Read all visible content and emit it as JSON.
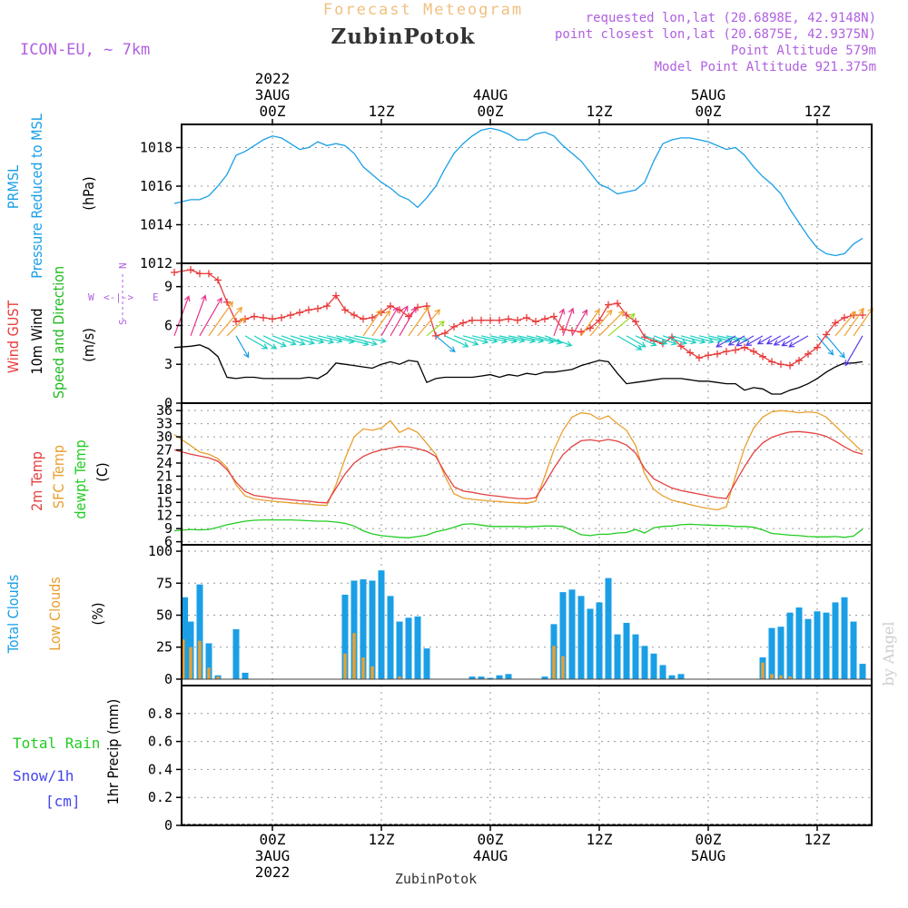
{
  "header": {
    "super_title": "Forecast Meteogram",
    "location": "ZubinPotok",
    "model": "ICON-EU, ~ 7km",
    "requested": "requested lon,lat (20.6898E, 42.9148N)",
    "closest": "point closest lon,lat (20.6875E, 42.9375N)",
    "point_alt": "Point Altitude 579m",
    "model_alt": "Model Point Altitude 921.375m",
    "footer": "ZubinPotok",
    "credit": "by Angel"
  },
  "colors": {
    "pressure": "#1a9fe6",
    "gust": "#e83a3a",
    "wind": "#000000",
    "dir": "#22bb22",
    "t2m": "#e34040",
    "sfc": "#e8a030",
    "dew": "#22cc22",
    "tcc": "#1a9fe6",
    "lcc": "#e8a030",
    "rain": "#22cc22",
    "snow": "#4444ee",
    "violet": "#b060e0",
    "orange_title": "#f0c080"
  },
  "time_axis": {
    "top": [
      {
        "h": 0,
        "lines": [
          "2022",
          "3AUG",
          "00Z"
        ]
      },
      {
        "h": 12,
        "lines": [
          "12Z"
        ]
      },
      {
        "h": 24,
        "lines": [
          "4AUG",
          "00Z"
        ]
      },
      {
        "h": 36,
        "lines": [
          "12Z"
        ]
      },
      {
        "h": 48,
        "lines": [
          "5AUG",
          "00Z"
        ]
      },
      {
        "h": 60,
        "lines": [
          "12Z"
        ]
      }
    ],
    "bottom": [
      {
        "h": 0,
        "lines": [
          "00Z",
          "3AUG",
          "2022"
        ]
      },
      {
        "h": 12,
        "lines": [
          "12Z"
        ]
      },
      {
        "h": 24,
        "lines": [
          "00Z",
          "4AUG"
        ]
      },
      {
        "h": 36,
        "lines": [
          "12Z"
        ]
      },
      {
        "h": 48,
        "lines": [
          "00Z",
          "5AUG"
        ]
      },
      {
        "h": 60,
        "lines": [
          "12Z"
        ]
      }
    ]
  },
  "panels": {
    "pressure": {
      "labels": [
        {
          "text": "PRMSL",
          "color": "pressure"
        },
        {
          "text": "Pressure Reduced to MSL",
          "color": "pressure"
        },
        {
          "text": "(hPa)",
          "color": "wind"
        }
      ],
      "ticks": [
        "1012",
        "1014",
        "1016",
        "1018"
      ]
    },
    "wind": {
      "labels": [
        {
          "text": "Wind GUST",
          "color": "gust"
        },
        {
          "text": "10m Wind",
          "color": "wind"
        },
        {
          "text": "Speed and Direction",
          "color": "dir"
        },
        {
          "text": "(m/s)",
          "color": "wind"
        }
      ],
      "ticks": [
        "0",
        "3",
        "6",
        "9"
      ],
      "compass_w": "W",
      "compass_e": "E",
      "compass_n": "N",
      "compass_s": "S",
      "compass_arrows": "<-|->"
    },
    "temp": {
      "labels": [
        {
          "text": "2m Temp",
          "color": "t2m"
        },
        {
          "text": "SFC Temp",
          "color": "sfc"
        },
        {
          "text": "dewpt Temp",
          "color": "dew"
        },
        {
          "text": "(C)",
          "color": "wind"
        }
      ],
      "ticks": [
        "6",
        "9",
        "12",
        "15",
        "18",
        "21",
        "24",
        "27",
        "30",
        "33",
        "36"
      ]
    },
    "clouds": {
      "labels": [
        {
          "text": "Total Clouds",
          "color": "tcc"
        },
        {
          "text": "Low Clouds",
          "color": "lcc"
        },
        {
          "text": "(%)",
          "color": "wind"
        }
      ],
      "ticks": [
        "0",
        "25",
        "50",
        "75",
        "100"
      ]
    },
    "precip": {
      "label_rain": "Total  Rain",
      "label_snow": "Snow/1h",
      "label_cm": "[cm]",
      "axis_label": "1hr Precip (mm)",
      "ticks": [
        "0",
        "0.2",
        "0.4",
        "0.6",
        "0.8"
      ]
    }
  },
  "chart_data": {
    "type": "line",
    "x_unit": "hours from 2022-08-03 00Z",
    "xlim": [
      -10,
      66
    ],
    "pressure": {
      "name": "PRMSL",
      "ylim": [
        1012,
        1019.2
      ],
      "x": [
        -10.8,
        -9,
        -8,
        -7,
        -6,
        -5,
        -4,
        -3,
        -2,
        -1,
        0,
        1,
        2,
        3,
        4,
        5,
        6,
        7,
        8,
        9,
        10,
        11,
        12,
        13,
        14,
        15,
        16,
        17,
        18,
        19,
        20,
        21,
        22,
        23,
        24,
        25,
        26,
        27,
        28,
        29,
        30,
        31,
        32,
        33,
        34,
        35,
        36,
        37,
        38,
        39,
        40,
        41,
        42,
        43,
        44,
        45,
        46,
        47,
        48,
        49,
        50,
        51,
        52,
        53,
        54,
        55,
        56,
        57,
        58,
        59,
        60,
        61,
        62,
        63,
        64,
        65
      ],
      "values": [
        1015.1,
        1015.3,
        1015.3,
        1015.5,
        1016.0,
        1016.6,
        1017.6,
        1017.8,
        1018.1,
        1018.4,
        1018.6,
        1018.5,
        1018.2,
        1017.9,
        1018.0,
        1018.3,
        1018.1,
        1018.2,
        1018.1,
        1017.7,
        1017.0,
        1016.6,
        1016.2,
        1015.9,
        1015.5,
        1015.3,
        1014.9,
        1015.4,
        1016.0,
        1016.9,
        1017.7,
        1018.2,
        1018.6,
        1018.9,
        1019.0,
        1018.9,
        1018.7,
        1018.4,
        1018.4,
        1018.7,
        1018.8,
        1018.6,
        1018.1,
        1017.7,
        1017.3,
        1016.7,
        1016.1,
        1015.9,
        1015.6,
        1015.7,
        1015.8,
        1016.2,
        1017.3,
        1018.2,
        1018.4,
        1018.5,
        1018.5,
        1018.4,
        1018.3,
        1018.1,
        1017.9,
        1018.0,
        1017.6,
        1017.0,
        1016.5,
        1016.1,
        1015.6,
        1014.8,
        1014.1,
        1013.4,
        1012.8,
        1012.5,
        1012.4,
        1012.5,
        1013.0,
        1013.3
      ]
    },
    "wind": {
      "ylim": [
        0,
        10.8
      ],
      "x": [
        -10.8,
        -9,
        -8,
        -7,
        -6,
        -5,
        -4,
        -3,
        -2,
        -1,
        0,
        1,
        2,
        3,
        4,
        5,
        6,
        7,
        8,
        9,
        10,
        11,
        12,
        13,
        14,
        15,
        16,
        17,
        18,
        19,
        20,
        21,
        22,
        23,
        24,
        25,
        26,
        27,
        28,
        29,
        30,
        31,
        32,
        33,
        34,
        35,
        36,
        37,
        38,
        39,
        40,
        41,
        42,
        43,
        44,
        45,
        46,
        47,
        48,
        49,
        50,
        51,
        52,
        53,
        54,
        55,
        56,
        57,
        58,
        59,
        60,
        61,
        62,
        63,
        64,
        65
      ],
      "gust": {
        "name": "Wind GUST",
        "values": [
          10.1,
          10.3,
          10.0,
          10.0,
          9.5,
          7.8,
          6.3,
          6.5,
          6.7,
          6.6,
          6.5,
          6.6,
          6.8,
          7.0,
          7.2,
          7.3,
          7.5,
          8.3,
          7.2,
          6.8,
          6.5,
          6.6,
          7.0,
          7.5,
          7.2,
          6.7,
          7.4,
          7.5,
          5.2,
          5.4,
          5.9,
          6.2,
          6.4,
          6.4,
          6.4,
          6.4,
          6.5,
          6.4,
          6.6,
          6.3,
          6.5,
          6.7,
          5.7,
          5.6,
          5.5,
          5.8,
          6.4,
          7.6,
          7.7,
          6.8,
          6.3,
          5.1,
          4.8,
          4.6,
          5.1,
          4.4,
          3.9,
          3.5,
          3.7,
          3.8,
          4.0,
          4.1,
          4.3,
          4.0,
          3.6,
          3.2,
          3.0,
          2.9,
          3.3,
          3.8,
          4.3,
          5.3,
          6.2,
          6.6,
          6.8,
          6.8
        ]
      },
      "speed": {
        "name": "10m Wind",
        "values": [
          4.3,
          4.4,
          4.5,
          4.2,
          3.6,
          2.0,
          1.9,
          2.0,
          2.0,
          1.9,
          1.9,
          1.9,
          1.9,
          1.9,
          2.0,
          1.9,
          2.3,
          3.1,
          3.0,
          2.9,
          2.8,
          2.7,
          3.0,
          3.2,
          3.0,
          3.3,
          3.2,
          1.6,
          1.9,
          2.0,
          2.0,
          2.0,
          2.0,
          2.1,
          2.2,
          2.0,
          2.2,
          2.1,
          2.3,
          2.2,
          2.4,
          2.4,
          2.5,
          2.6,
          2.9,
          3.1,
          3.3,
          3.2,
          2.3,
          1.5,
          1.6,
          1.7,
          1.8,
          1.9,
          1.9,
          1.9,
          1.8,
          1.7,
          1.7,
          1.6,
          1.5,
          1.5,
          1.0,
          1.2,
          1.1,
          0.7,
          0.7,
          1.0,
          1.2,
          1.5,
          1.9,
          2.4,
          2.8,
          3.1,
          3.1,
          3.2
        ]
      },
      "direction_deg": [
        200,
        200,
        210,
        215,
        220,
        225,
        330,
        300,
        300,
        295,
        290,
        290,
        288,
        285,
        285,
        283,
        283,
        285,
        285,
        280,
        215,
        215,
        210,
        210,
        210,
        215,
        220,
        230,
        310,
        295,
        290,
        285,
        283,
        283,
        282,
        282,
        282,
        282,
        283,
        285,
        290,
        200,
        200,
        210,
        215,
        220,
        225,
        230,
        300,
        300,
        295,
        290,
        290,
        288,
        286,
        285,
        285,
        283,
        283,
        282,
        282,
        60,
        60,
        60,
        60,
        60,
        60,
        60,
        60,
        60,
        320,
        320,
        220,
        215,
        215,
        30
      ]
    },
    "temperature": {
      "ylim": [
        5.3,
        37.7
      ],
      "x": [
        -10.8,
        -9,
        -8,
        -7,
        -6,
        -5,
        -4,
        -3,
        -2,
        -1,
        0,
        1,
        2,
        3,
        4,
        5,
        6,
        7,
        8,
        9,
        10,
        11,
        12,
        13,
        14,
        15,
        16,
        17,
        18,
        19,
        20,
        21,
        22,
        23,
        24,
        25,
        26,
        27,
        28,
        29,
        30,
        31,
        32,
        33,
        34,
        35,
        36,
        37,
        38,
        39,
        40,
        41,
        42,
        43,
        44,
        45,
        46,
        47,
        48,
        49,
        50,
        51,
        52,
        53,
        54,
        55,
        56,
        57,
        58,
        59,
        60,
        61,
        62,
        63,
        64,
        65
      ],
      "t2m": {
        "name": "2m Temp",
        "values": [
          27.0,
          26.0,
          25.6,
          25.2,
          24.4,
          22.5,
          19.6,
          17.5,
          16.6,
          16.3,
          16.0,
          15.8,
          15.6,
          15.4,
          15.3,
          15.0,
          14.9,
          18.2,
          21.5,
          24.0,
          25.5,
          26.4,
          27.0,
          27.4,
          27.8,
          27.7,
          27.3,
          26.7,
          25.5,
          21.8,
          18.6,
          17.6,
          17.3,
          16.9,
          16.6,
          16.4,
          16.1,
          15.9,
          15.8,
          16.1,
          19.3,
          22.8,
          25.9,
          27.8,
          29.1,
          29.3,
          29.0,
          29.4,
          29.0,
          28.1,
          26.3,
          22.7,
          20.4,
          19.3,
          18.3,
          17.7,
          17.3,
          16.9,
          16.5,
          16.1,
          15.9,
          19.6,
          23.2,
          26.4,
          28.6,
          29.9,
          30.6,
          31.1,
          31.2,
          31.0,
          30.7,
          30.1,
          29.0,
          27.7,
          26.6,
          26.0
        ]
      },
      "sfc": {
        "name": "SFC Temp",
        "values": [
          30.5,
          28.0,
          26.5,
          26.0,
          25.0,
          23.0,
          19.0,
          16.5,
          15.8,
          15.5,
          15.3,
          15.1,
          14.9,
          14.7,
          14.6,
          14.4,
          14.3,
          19.0,
          25.0,
          30.0,
          31.8,
          31.5,
          32.0,
          33.7,
          31.0,
          32.0,
          31.0,
          28.5,
          26.0,
          21.0,
          17.0,
          16.0,
          15.7,
          15.5,
          15.3,
          15.2,
          15.0,
          14.9,
          14.8,
          15.3,
          21.0,
          27.0,
          31.5,
          34.5,
          35.5,
          35.2,
          34.0,
          34.8,
          33.0,
          31.5,
          28.0,
          21.5,
          18.0,
          16.5,
          15.5,
          15.0,
          14.5,
          14.0,
          13.6,
          13.3,
          14.0,
          21.0,
          27.5,
          32.0,
          34.5,
          35.7,
          36.0,
          35.8,
          35.5,
          35.7,
          35.5,
          34.5,
          32.5,
          30.5,
          28.5,
          26.5
        ]
      },
      "dew": {
        "name": "dewpt Temp",
        "values": [
          8.5,
          8.8,
          8.7,
          8.8,
          9.3,
          9.9,
          10.3,
          10.7,
          10.9,
          11.0,
          11.0,
          11.0,
          11.0,
          10.9,
          10.8,
          10.7,
          10.7,
          10.5,
          10.2,
          9.6,
          8.5,
          7.8,
          7.4,
          7.2,
          7.0,
          6.9,
          7.2,
          7.5,
          8.3,
          8.7,
          9.3,
          10.0,
          10.1,
          9.8,
          9.5,
          9.5,
          9.5,
          9.5,
          9.4,
          9.5,
          9.6,
          9.6,
          9.5,
          8.6,
          7.6,
          7.4,
          7.7,
          7.7,
          8.0,
          8.1,
          8.8,
          8.0,
          9.2,
          9.5,
          9.6,
          9.9,
          10.0,
          9.9,
          9.8,
          9.7,
          9.7,
          9.5,
          9.5,
          9.3,
          8.7,
          7.9,
          7.7,
          7.5,
          7.4,
          7.2,
          7.1,
          7.1,
          7.2,
          7.0,
          7.3,
          8.9
        ]
      }
    },
    "clouds": {
      "ylim": [
        -5,
        105
      ],
      "x": [
        -10.8,
        -9,
        -8,
        -7,
        -6,
        -5,
        -4,
        -3,
        -2,
        -1,
        0,
        1,
        2,
        3,
        4,
        5,
        6,
        7,
        8,
        9,
        10,
        11,
        12,
        13,
        14,
        15,
        16,
        17,
        18,
        19,
        20,
        21,
        22,
        23,
        24,
        25,
        26,
        27,
        28,
        29,
        30,
        31,
        32,
        33,
        34,
        35,
        36,
        37,
        38,
        39,
        40,
        41,
        42,
        43,
        44,
        45,
        46,
        47,
        48,
        49,
        50,
        51,
        52,
        53,
        54,
        55,
        56,
        57,
        58,
        59,
        60,
        61,
        62,
        63,
        64,
        65
      ],
      "total": {
        "name": "Total Clouds",
        "values": [
          64,
          45,
          74,
          28,
          3,
          0,
          39,
          5,
          0,
          0,
          0,
          0,
          0,
          0,
          0,
          0,
          0,
          0,
          66,
          77,
          78,
          77,
          85,
          65,
          45,
          48,
          49,
          24,
          0,
          0,
          0,
          0,
          2,
          2,
          1,
          3,
          4,
          0,
          0,
          0,
          2,
          43,
          68,
          70,
          65,
          55,
          60,
          79,
          35,
          44,
          35,
          26,
          20,
          11,
          3,
          4,
          0,
          0,
          0,
          0,
          0,
          0,
          0,
          0,
          17,
          40,
          41,
          52,
          56,
          47,
          53,
          52,
          60,
          64,
          45,
          12
        ]
      },
      "low": {
        "name": "Low Clouds",
        "values": [
          31,
          25,
          30,
          9,
          2,
          0,
          0,
          0,
          0,
          0,
          0,
          0,
          0,
          0,
          0,
          0,
          0,
          0,
          20,
          36,
          17,
          10,
          0,
          0,
          2,
          0,
          0,
          0,
          0,
          0,
          0,
          0,
          0,
          0,
          0,
          0,
          0,
          0,
          0,
          0,
          0,
          26,
          18,
          0,
          0,
          0,
          0,
          0,
          0,
          0,
          0,
          0,
          0,
          0,
          0,
          0,
          0,
          0,
          0,
          0,
          0,
          0,
          0,
          0,
          13,
          4,
          3,
          2,
          0,
          0,
          0,
          0,
          0,
          0,
          0,
          0
        ]
      }
    },
    "precip": {
      "ylim": [
        0,
        1.0
      ],
      "rain": {
        "name": "Total Rain",
        "values": []
      },
      "snow": {
        "name": "Snow/1h",
        "values": []
      }
    }
  }
}
